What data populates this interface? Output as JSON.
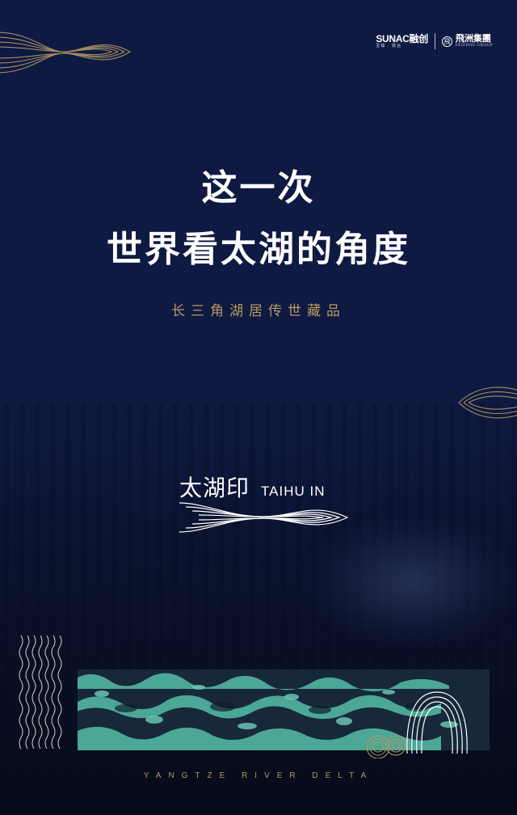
{
  "logos": {
    "sunac_main": "SUNAC融创",
    "sunac_sub": "至臻 · 致远",
    "feizhou_mark": "飛",
    "feizhou_main": "飛洲集團",
    "feizhou_sub": "FEIZHOU GROUP"
  },
  "headline": {
    "line1": "这一次",
    "line2": "世界看太湖的角度"
  },
  "subtitle": "长三角湖居传世藏品",
  "brand": {
    "name_cn": "太湖印",
    "name_en": "TAIHU IN"
  },
  "footer": "YANGTZE RIVER DELTA",
  "colors": {
    "background": "#0f1a42",
    "gold": "#b79a64",
    "teal": "#4fae9b",
    "white": "#ffffff"
  },
  "icons": [
    "fish-line-icon",
    "wave-lines-icon",
    "seal-arch-icon"
  ]
}
